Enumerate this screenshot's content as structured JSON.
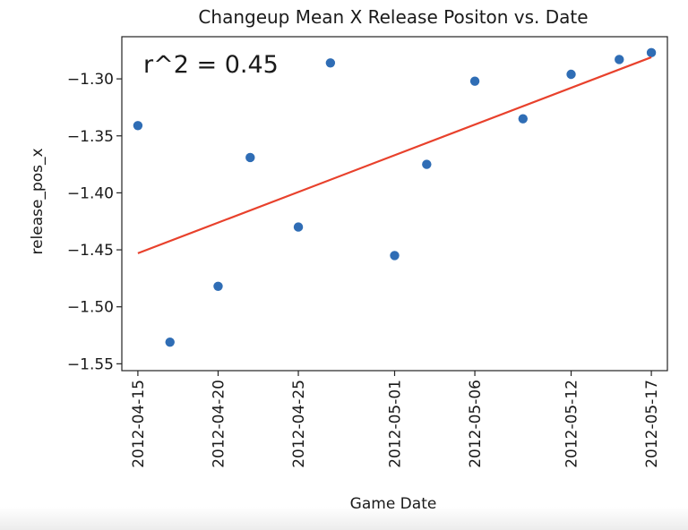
{
  "chart_data": {
    "type": "scatter",
    "title": "Changeup Mean X Release Positon vs. Date",
    "xlabel": "Game Date",
    "ylabel": "release_pos_x",
    "annotation": "r^2 = 0.45",
    "xlim": [
      "2012-04-14",
      "2012-05-18"
    ],
    "ylim": [
      -1.556,
      -1.263
    ],
    "x_ticks": [
      "2012-04-15",
      "2012-04-20",
      "2012-04-25",
      "2012-05-01",
      "2012-05-06",
      "2012-05-12",
      "2012-05-17"
    ],
    "y_ticks": [
      -1.3,
      -1.35,
      -1.4,
      -1.45,
      -1.5,
      -1.55
    ],
    "grid": false,
    "points": [
      {
        "x": "2012-04-15",
        "y": -1.341
      },
      {
        "x": "2012-04-17",
        "y": -1.531
      },
      {
        "x": "2012-04-20",
        "y": -1.482
      },
      {
        "x": "2012-04-22",
        "y": -1.369
      },
      {
        "x": "2012-04-25",
        "y": -1.43
      },
      {
        "x": "2012-04-27",
        "y": -1.286
      },
      {
        "x": "2012-05-01",
        "y": -1.455
      },
      {
        "x": "2012-05-03",
        "y": -1.375
      },
      {
        "x": "2012-05-06",
        "y": -1.302
      },
      {
        "x": "2012-05-09",
        "y": -1.335
      },
      {
        "x": "2012-05-12",
        "y": -1.296
      },
      {
        "x": "2012-05-15",
        "y": -1.283
      },
      {
        "x": "2012-05-17",
        "y": -1.277
      }
    ],
    "fit_line": {
      "start": {
        "x": "2012-04-15",
        "y": -1.453
      },
      "end": {
        "x": "2012-05-17",
        "y": -1.281
      }
    },
    "colors": {
      "points": "#2f6db5",
      "fit_line": "#e8412c",
      "text": "#1a1a1a"
    }
  }
}
